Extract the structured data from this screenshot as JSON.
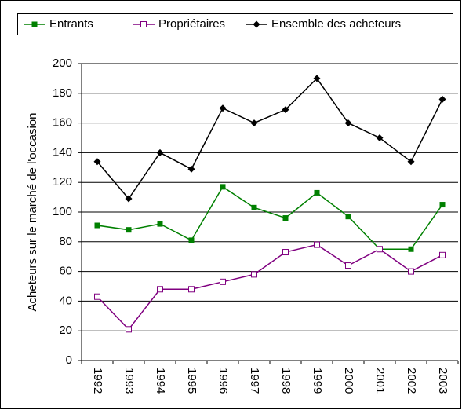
{
  "chart_data": {
    "type": "line",
    "y_label": "Acheteurs sur le marché de l'occasion",
    "categories": [
      "1992",
      "1993",
      "1994",
      "1995",
      "1996",
      "1997",
      "1998",
      "1999",
      "2000",
      "2001",
      "2002",
      "2003"
    ],
    "series": [
      {
        "name": "Entrants",
        "color": "#008000",
        "marker": "filled-square",
        "values": [
          91,
          88,
          92,
          81,
          117,
          103,
          96,
          113,
          97,
          75,
          75,
          105
        ]
      },
      {
        "name": "Propriétaires",
        "color": "#800080",
        "marker": "open-square",
        "values": [
          43,
          21,
          48,
          48,
          53,
          58,
          73,
          78,
          64,
          75,
          60,
          71
        ]
      },
      {
        "name": "Ensemble des acheteurs",
        "color": "#000000",
        "marker": "diamond",
        "values": [
          134,
          109,
          140,
          129,
          170,
          160,
          169,
          190,
          160,
          150,
          134,
          176
        ]
      }
    ],
    "ylim": [
      0,
      200
    ],
    "yticks": [
      0,
      20,
      40,
      60,
      80,
      100,
      120,
      140,
      160,
      180,
      200
    ],
    "grid": true,
    "legend": "top"
  }
}
